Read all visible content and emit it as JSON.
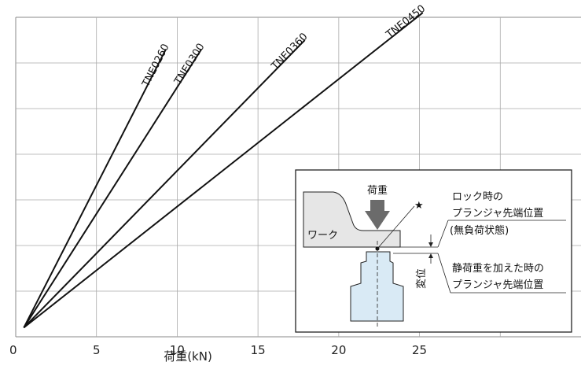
{
  "chart_data": {
    "type": "line",
    "xlabel": "荷重(kN)",
    "ylabel": "",
    "xlim": [
      0,
      35
    ],
    "ylim": [
      0,
      0.7
    ],
    "xticks": [
      "0",
      "5",
      "10",
      "15",
      "20",
      "25"
    ],
    "yticks": [],
    "grid": true,
    "series": [
      {
        "name": "TNE0260",
        "x": [
          0.5,
          9.3
        ],
        "y": [
          0.02,
          0.63
        ]
      },
      {
        "name": "TNE0300",
        "x": [
          0.5,
          11.5
        ],
        "y": [
          0.02,
          0.63
        ]
      },
      {
        "name": "TNE0360",
        "x": [
          0.5,
          17.9
        ],
        "y": [
          0.02,
          0.65
        ]
      },
      {
        "name": "TNE0450",
        "x": [
          0.5,
          25.2
        ],
        "y": [
          0.02,
          0.71
        ]
      }
    ]
  },
  "inset": {
    "load_label": "荷重",
    "work_label": "ワーク",
    "star": "★",
    "lock_label_1": "ロック時の",
    "lock_label_2": "プランジャ先端位置",
    "lock_label_3": "(無負荷状態)",
    "static_label_1": "静荷重を加えた時の",
    "static_label_2": "プランジャ先端位置",
    "displacement_label": "変位",
    "colors": {
      "arrow": "#6b6b6b",
      "work": "#e6e6e6",
      "plunger": "#d9eaf5"
    }
  }
}
